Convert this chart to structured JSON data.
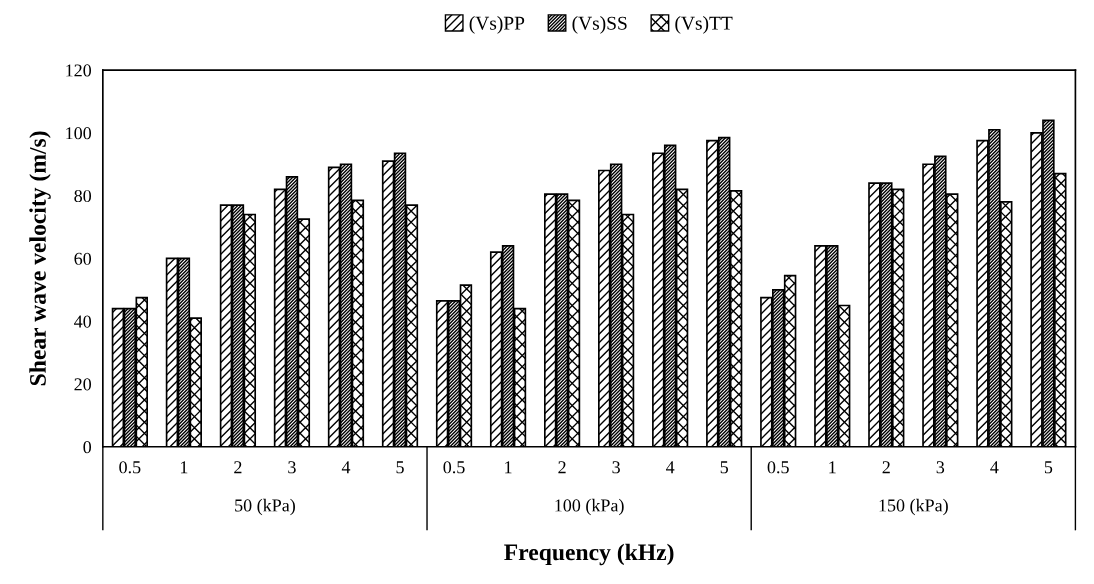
{
  "chart_data": {
    "type": "bar",
    "xlabel": "Frequency (kHz)",
    "ylabel": "Shear wave velocity (m/s)",
    "categories": [
      "0.5",
      "1",
      "2",
      "3",
      "4",
      "5",
      "0.5",
      "1",
      "2",
      "3",
      "4",
      "5",
      "0.5",
      "1",
      "2",
      "3",
      "4",
      "5"
    ],
    "annotations": [
      "50 (kPa)",
      "100 (kPa)",
      "150 (kPa)"
    ],
    "series": [
      {
        "name": "(Vs)PP",
        "color": "#000000",
        "values": [
          44,
          60,
          77,
          82,
          89,
          91,
          46.5,
          62,
          80.5,
          88,
          93.5,
          97.5,
          47.5,
          64,
          84,
          90,
          97.5,
          100
        ]
      },
      {
        "name": "(Vs)SS",
        "color": "#000000",
        "values": [
          44,
          60,
          77,
          86,
          90,
          93.5,
          46.5,
          64,
          80.5,
          90,
          96,
          98.5,
          50,
          64,
          84,
          92.5,
          101,
          104
        ]
      },
      {
        "name": "(Vs)TT",
        "color": "#000000",
        "values": [
          47.5,
          41,
          74,
          72.5,
          78.5,
          77,
          51.5,
          44,
          78.5,
          74,
          82,
          81.5,
          54.5,
          45,
          82,
          80.5,
          78,
          87
        ]
      }
    ],
    "ylim": [
      0,
      120
    ],
    "yticks": [
      0,
      20,
      40,
      60,
      80,
      100,
      120
    ],
    "grid": false,
    "legend": "top"
  }
}
